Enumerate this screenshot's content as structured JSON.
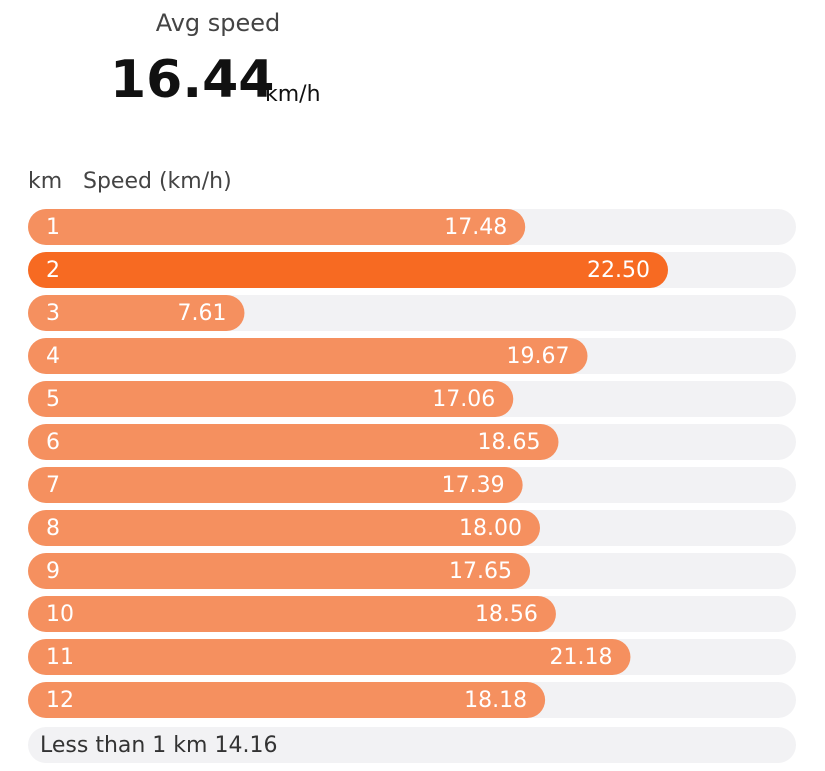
{
  "header": {
    "label": "Avg speed",
    "value": 16.44,
    "unit": "km/h"
  },
  "chart_data": {
    "type": "bar",
    "orientation": "horizontal",
    "category_label": "km",
    "value_label": "Speed (km/h)",
    "categories": [
      "1",
      "2",
      "3",
      "4",
      "5",
      "6",
      "7",
      "8",
      "9",
      "10",
      "11",
      "12"
    ],
    "values": [
      17.48,
      22.5,
      7.61,
      19.67,
      17.06,
      18.65,
      17.39,
      18,
      17.65,
      18.56,
      21.18,
      18.18
    ],
    "value_labels": [
      "17.48",
      "22.50",
      "7.61",
      "19.67",
      "17.06",
      "18.65",
      "17.39",
      "18.00",
      "17.65",
      "18.56",
      "21.18",
      "18.18"
    ],
    "xlim": [
      0,
      27
    ],
    "color": "#f5905f",
    "highlight_color": "#f76a22",
    "track_color": "#f2f2f4",
    "remainder": {
      "label": "Less than 1 km",
      "value": 14.16
    }
  }
}
